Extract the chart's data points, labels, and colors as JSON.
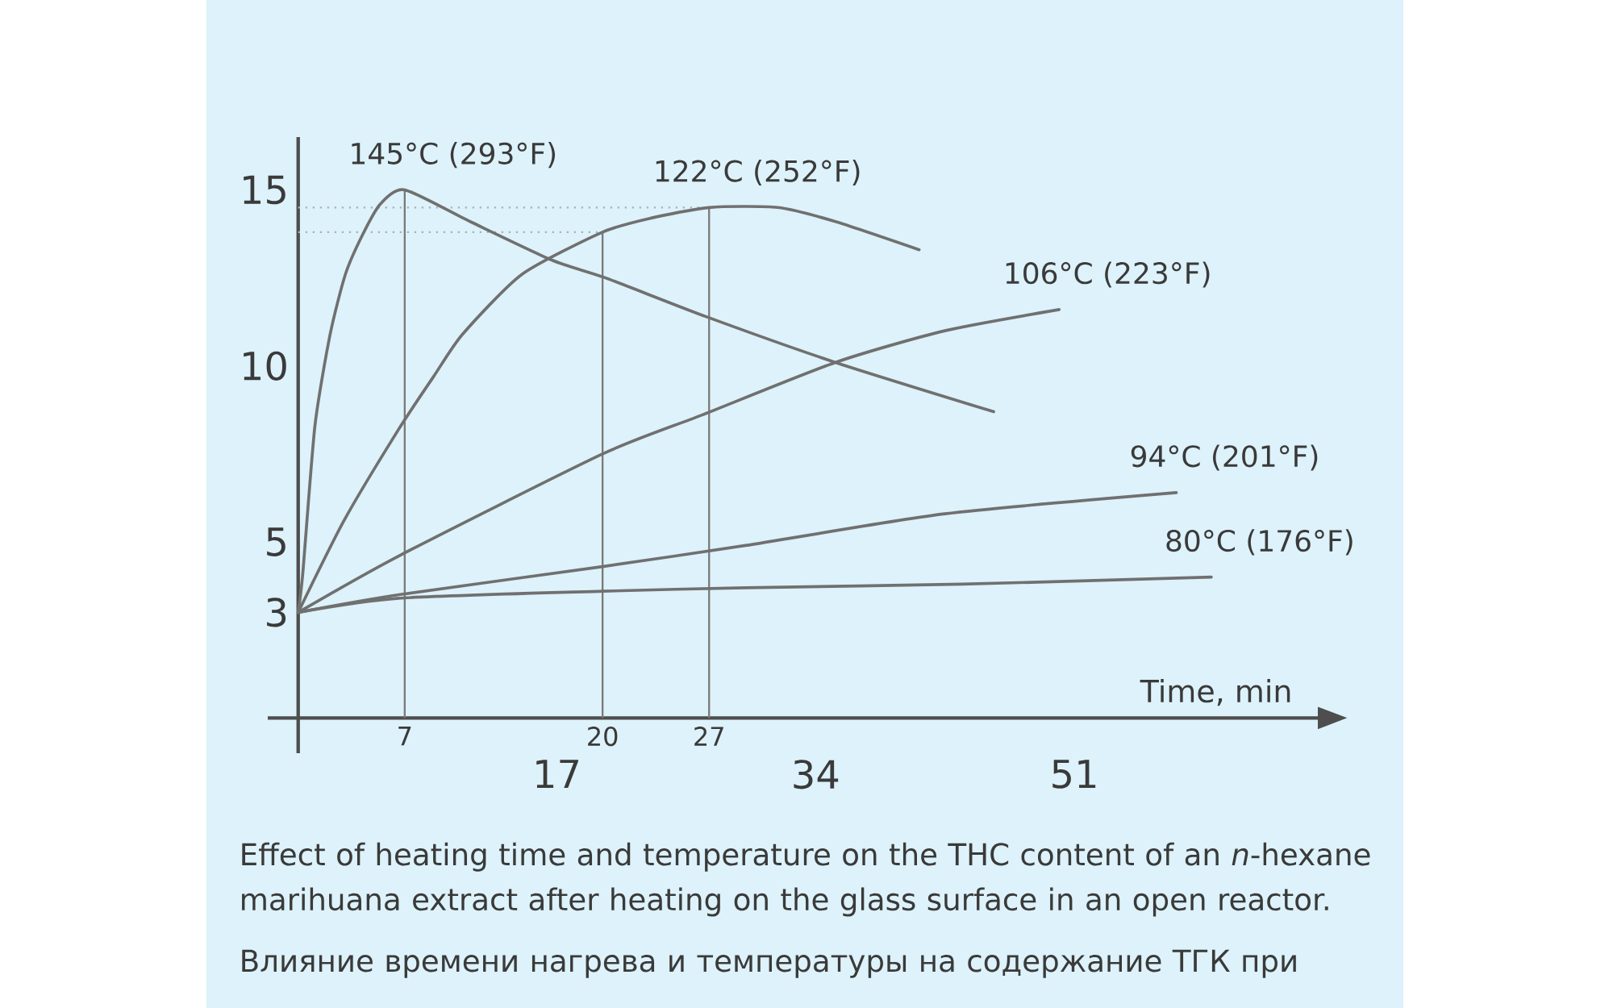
{
  "chart_data": {
    "type": "line",
    "xlabel": "Time, min",
    "xlim": [
      -2,
      67
    ],
    "ylim": [
      -1,
      16.5
    ],
    "xticks": [
      17,
      34,
      51
    ],
    "yticks": [
      3,
      5,
      10,
      15
    ],
    "line_style": "solid",
    "series": [
      {
        "name": "145°C (293°F)",
        "color": "#707070",
        "x": [
          0,
          0.3,
          1.1,
          2.1,
          3.1,
          4.2,
          5.4,
          7,
          11.3,
          16.7,
          20.2,
          26.8,
          35.3,
          45.7
        ],
        "values": [
          3,
          4.1,
          8.3,
          10.9,
          12.6,
          13.7,
          14.6,
          15,
          14.1,
          13.0,
          12.5,
          11.4,
          10.1,
          8.7
        ]
      },
      {
        "name": "122°C (252°F)",
        "color": "#707070",
        "x": [
          0,
          3,
          6.6,
          8.9,
          10.8,
          14.7,
          20,
          23.2,
          27,
          31.5,
          35.3,
          40.8
        ],
        "values": [
          3,
          5.6,
          8.2,
          9.7,
          10.9,
          12.6,
          13.8,
          14.2,
          14.5,
          14.5,
          14.1,
          13.3
        ]
      },
      {
        "name": "106°C (223°F)",
        "color": "#707070",
        "x": [
          0,
          6.6,
          20,
          26.5,
          35.3,
          42.5,
          50
        ],
        "values": [
          3,
          4.6,
          7.5,
          8.6,
          10.1,
          11.0,
          11.6
        ]
      },
      {
        "name": "94°C (201°F)",
        "color": "#707070",
        "x": [
          0,
          6.6,
          20,
          29.4,
          42.5,
          57.7
        ],
        "values": [
          3,
          3.5,
          4.3,
          4.9,
          5.8,
          6.4
        ]
      },
      {
        "name": "80°C (176°F)",
        "color": "#707070",
        "x": [
          0,
          6.6,
          20,
          29.4,
          43.6,
          60
        ],
        "values": [
          3,
          3.4,
          3.6,
          3.7,
          3.8,
          4.0
        ]
      }
    ],
    "ref_lines": [
      {
        "axis": "x",
        "value": 7,
        "label": "7",
        "color": "#7a7a7a"
      },
      {
        "axis": "x",
        "value": 20,
        "label": "20",
        "color": "#7a7a7a"
      },
      {
        "axis": "x",
        "value": 27,
        "label": "27",
        "color": "#7a7a7a"
      },
      {
        "axis": "y",
        "value": 14.5,
        "color": "#a8b4b8",
        "line_style": "dotted"
      },
      {
        "axis": "y",
        "value": 13.8,
        "color": "#a8b4b8",
        "line_style": "dotted"
      }
    ],
    "annotations": [
      "Effect of heating time and temperature on the THC content of an *n*-hexane marihuana extract after heating on the glass surface in an open reactor.",
      "Влияние времени нагрева и температуры на содержание ТГК при"
    ]
  }
}
